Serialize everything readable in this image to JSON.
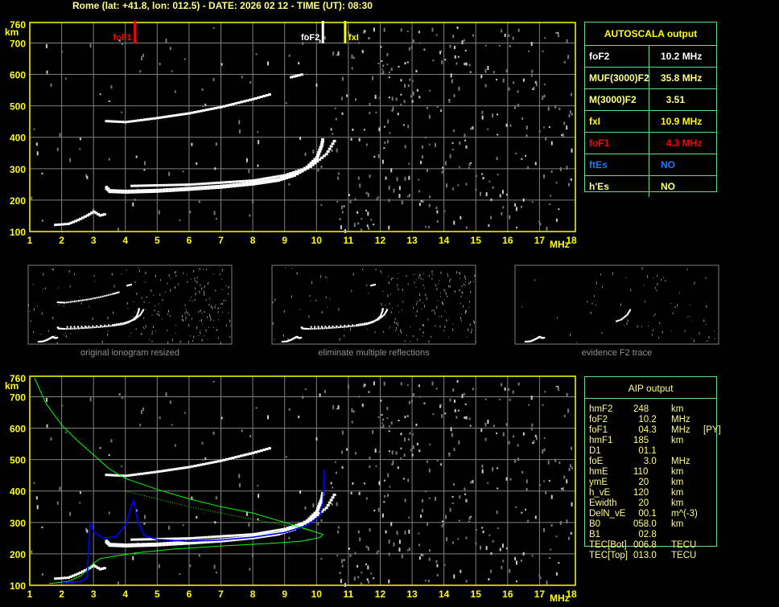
{
  "title": "Rome (lat: +41.8, lon: 012.5) - DATE: 2026 02 12 - TIME (UT): 08:30",
  "colors": {
    "axis": "#ffff00",
    "grid": "#808080",
    "trace": "#ffffff",
    "foF1": "#ff0000",
    "foF2": "#ffffff",
    "fxI": "#ffff00",
    "profile": "#00ff00",
    "aip_trace": "#0000ff",
    "panel_border": "#60e080"
  },
  "chart_data": [
    {
      "type": "scatter",
      "title": "",
      "xlabel": "MHz",
      "ylabel": "km",
      "xlim": [
        1,
        18
      ],
      "ylim": [
        100,
        760
      ],
      "x_ticks": [
        "1",
        "2",
        "3",
        "4",
        "5",
        "6",
        "7",
        "8",
        "9",
        "10",
        "11",
        "12",
        "13",
        "14",
        "15",
        "16",
        "17",
        "18"
      ],
      "y_ticks": [
        "100",
        "200",
        "300",
        "400",
        "500",
        "600",
        "700",
        "760"
      ],
      "grid": true,
      "markers": [
        {
          "label": "foF1",
          "freq": 4.3,
          "color": "#ff0000"
        },
        {
          "label": "foF2",
          "freq": 10.2,
          "color": "#ffffff"
        },
        {
          "label": "fxI",
          "freq": 10.9,
          "color": "#ffff00"
        }
      ],
      "traces": [
        {
          "points": [
            [
              1.8,
              120
            ],
            [
              2.2,
              123
            ],
            [
              2.5,
              135
            ],
            [
              2.8,
              150
            ],
            [
              3.0,
              162
            ],
            [
              3.2,
              150
            ],
            [
              3.4,
              155
            ]
          ]
        },
        {
          "points": [
            [
              3.4,
              240
            ],
            [
              3.5,
              230
            ],
            [
              4,
              228
            ],
            [
              5,
              231
            ],
            [
              6,
              237
            ],
            [
              7,
              244
            ],
            [
              8,
              254
            ],
            [
              8.8,
              266
            ],
            [
              9.3,
              282
            ],
            [
              9.7,
              305
            ],
            [
              10.0,
              335
            ],
            [
              10.15,
              375
            ],
            [
              10.2,
              400
            ]
          ]
        },
        {
          "points": [
            [
              4.2,
              244
            ],
            [
              6,
              248
            ],
            [
              8,
              261
            ],
            [
              9,
              278
            ],
            [
              9.8,
              305
            ],
            [
              10.3,
              345
            ],
            [
              10.6,
              395
            ]
          ]
        },
        {
          "points": [
            [
              3.4,
              450
            ],
            [
              4,
              447
            ],
            [
              5,
              460
            ],
            [
              6,
              475
            ],
            [
              7,
              495
            ],
            [
              8,
              520
            ],
            [
              8.6,
              537
            ]
          ]
        },
        {
          "points": [
            [
              9.2,
              590
            ],
            [
              9.6,
              600
            ]
          ]
        }
      ]
    },
    {
      "type": "line",
      "title": "",
      "xlabel": "MHz",
      "ylabel": "km",
      "xlim": [
        1,
        18
      ],
      "ylim": [
        100,
        760
      ],
      "x_ticks": [
        "1",
        "2",
        "3",
        "4",
        "5",
        "6",
        "7",
        "8",
        "9",
        "10",
        "11",
        "12",
        "13",
        "14",
        "15",
        "16",
        "17",
        "18"
      ],
      "y_ticks": [
        "100",
        "200",
        "300",
        "400",
        "500",
        "600",
        "700",
        "760"
      ],
      "grid": true,
      "traces": [
        {
          "points": [
            [
              1.8,
              120
            ],
            [
              2.2,
              123
            ],
            [
              2.5,
              135
            ],
            [
              2.8,
              150
            ],
            [
              3.0,
              162
            ],
            [
              3.2,
              150
            ],
            [
              3.4,
              155
            ]
          ]
        },
        {
          "points": [
            [
              3.4,
              240
            ],
            [
              3.5,
              230
            ],
            [
              4,
              228
            ],
            [
              5,
              231
            ],
            [
              6,
              237
            ],
            [
              7,
              244
            ],
            [
              8,
              254
            ],
            [
              8.8,
              266
            ],
            [
              9.3,
              282
            ],
            [
              9.7,
              305
            ],
            [
              10.0,
              335
            ],
            [
              10.15,
              375
            ],
            [
              10.2,
              400
            ]
          ]
        },
        {
          "points": [
            [
              4.2,
              244
            ],
            [
              6,
              248
            ],
            [
              8,
              261
            ],
            [
              9,
              278
            ],
            [
              9.8,
              305
            ],
            [
              10.3,
              345
            ],
            [
              10.6,
              395
            ]
          ]
        },
        {
          "points": [
            [
              3.4,
              450
            ],
            [
              4,
              447
            ],
            [
              5,
              460
            ],
            [
              6,
              475
            ],
            [
              7,
              495
            ],
            [
              8,
              520
            ],
            [
              8.6,
              537
            ]
          ]
        }
      ],
      "series": [
        {
          "color": "#00ff00",
          "points": [
            [
              1.15,
              760
            ],
            [
              1.5,
              680
            ],
            [
              2,
              610
            ],
            [
              2.5,
              560
            ],
            [
              3,
              515
            ],
            [
              3.5,
              470
            ],
            [
              4,
              440
            ],
            [
              5,
              405
            ],
            [
              6,
              375
            ],
            [
              7,
              350
            ],
            [
              8,
              330
            ],
            [
              9,
              300
            ],
            [
              9.8,
              275
            ],
            [
              10.2,
              262
            ],
            [
              10.1,
              252
            ],
            [
              9.5,
              240
            ],
            [
              8.5,
              233
            ],
            [
              7,
              225
            ],
            [
              5.5,
              215
            ],
            [
              4.5,
              205
            ],
            [
              3.8,
              195
            ],
            [
              3.2,
              185
            ],
            [
              3.0,
              170
            ],
            [
              2.8,
              150
            ],
            [
              2.6,
              130
            ],
            [
              2.2,
              112
            ],
            [
              1.6,
              105
            ]
          ]
        },
        {
          "color": "#00ff00",
          "dotted": true,
          "points": [
            [
              4.0,
              400
            ],
            [
              6,
              350
            ],
            [
              8,
              310
            ],
            [
              9.5,
              282
            ],
            [
              10.2,
              262
            ]
          ]
        },
        {
          "color": "#0000ff",
          "points": [
            [
              2.0,
              108
            ],
            [
              2.6,
              112
            ],
            [
              2.8,
              125
            ],
            [
              2.9,
              300
            ],
            [
              3.0,
              270
            ],
            [
              3.3,
              250
            ],
            [
              3.7,
              255
            ],
            [
              4.0,
              290
            ],
            [
              4.25,
              370
            ],
            [
              4.4,
              300
            ],
            [
              4.6,
              258
            ],
            [
              5,
              246
            ],
            [
              6,
              240
            ],
            [
              7,
              244
            ],
            [
              8,
              253
            ],
            [
              9,
              268
            ],
            [
              9.7,
              290
            ],
            [
              10.1,
              320
            ],
            [
              10.2,
              360
            ],
            [
              10.25,
              470
            ]
          ]
        }
      ]
    }
  ],
  "autoscala": {
    "title": "AUTOSCALA output",
    "rows": [
      {
        "key": "foF2",
        "value": "10.2 MHz",
        "color": "#ffffff"
      },
      {
        "key": "MUF(3000)F2",
        "value": "35.8 MHz",
        "color": "#ffff80"
      },
      {
        "key": "M(3000)F2",
        "value": "  3.51",
        "color": "#ffff80"
      },
      {
        "key": "fxI",
        "value": "10.9 MHz",
        "color": "#ffff00"
      },
      {
        "key": "foF1",
        "value": "  4.3 MHz",
        "color": "#ff0000"
      },
      {
        "key": "ftEs",
        "value": "NO",
        "color": "#1e78ff"
      },
      {
        "key": "h'Es",
        "value": "NO",
        "color": "#ffff80"
      }
    ]
  },
  "thumbnails": [
    {
      "label": "original ionogram resized"
    },
    {
      "label": "eliminate multiple reflections"
    },
    {
      "label": "evidence F2 trace"
    }
  ],
  "aip": {
    "title": "AIP output",
    "rows": [
      {
        "name": "hmF2",
        "value": "248",
        "unit": "km",
        "extra": ""
      },
      {
        "name": "foF2",
        "value": "  10.2",
        "unit": "MHz",
        "extra": ""
      },
      {
        "name": "foF1",
        "value": "  04.3",
        "unit": "MHz",
        "extra": "[PY]"
      },
      {
        "name": "hmF1",
        "value": "185",
        "unit": "km",
        "extra": ""
      },
      {
        "name": "D1",
        "value": "  01.1",
        "unit": "",
        "extra": ""
      },
      {
        "name": "foE",
        "value": "    3.0",
        "unit": "MHz",
        "extra": ""
      },
      {
        "name": "hmE",
        "value": "110",
        "unit": "km",
        "extra": ""
      },
      {
        "name": "ymE",
        "value": "  20",
        "unit": "km",
        "extra": ""
      },
      {
        "name": "h_vE",
        "value": "120",
        "unit": "km",
        "extra": ""
      },
      {
        "name": "Ewidth",
        "value": "  20",
        "unit": "km",
        "extra": ""
      },
      {
        "name": "DelN_vE",
        "value": "  00.1",
        "unit": "m^(-3)",
        "extra": ""
      },
      {
        "name": "B0",
        "value": "058.0",
        "unit": "km",
        "extra": ""
      },
      {
        "name": "B1",
        "value": "  02.8",
        "unit": "",
        "extra": ""
      },
      {
        "name": "TEC[Bot]",
        "value": "006.8",
        "unit": "TECU",
        "extra": ""
      },
      {
        "name": "TEC[Top]",
        "value": "013.0",
        "unit": "TECU",
        "extra": ""
      }
    ]
  }
}
